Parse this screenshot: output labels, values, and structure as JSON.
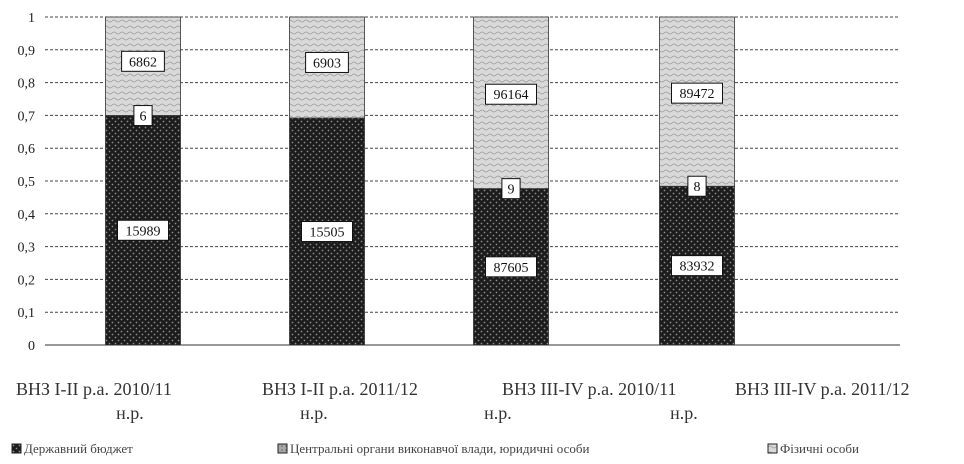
{
  "chart_data": {
    "type": "bar",
    "stacked": true,
    "normalized": true,
    "categories": [
      [
        "ВНЗ І-ІІ р.а.   2010/11",
        "н.р."
      ],
      [
        "ВНЗ І-ІІ р.а.   2011/12",
        "н.р."
      ],
      [
        "ВНЗ ІІІ-ІV р.а. 2010/11",
        "н.р."
      ],
      [
        "ВНЗ ІІІ-ІV р.а. 2011/12",
        "н.р."
      ]
    ],
    "series": [
      {
        "name": "Державний бюджет",
        "values": [
          15989,
          15505,
          87605,
          83932
        ]
      },
      {
        "name": "Центральні органи виконавчої влади, юридичні особи",
        "values": [
          6,
          0,
          9,
          8
        ]
      },
      {
        "name": "Фізичні особи",
        "values": [
          6862,
          6903,
          96164,
          89472
        ]
      }
    ],
    "data_labels": [
      [
        "15989",
        "6",
        "6862"
      ],
      [
        "15505",
        "",
        "6903"
      ],
      [
        "87605",
        "9",
        "96164"
      ],
      [
        "83932",
        "8",
        "89472"
      ]
    ],
    "yticks": [
      "0",
      "0,1",
      "0,2",
      "0,3",
      "0,4",
      "0,5",
      "0,6",
      "0,7",
      "0,8",
      "0,9",
      "1"
    ],
    "ylim": [
      0,
      1
    ],
    "grid": true,
    "legend": "bottom"
  }
}
